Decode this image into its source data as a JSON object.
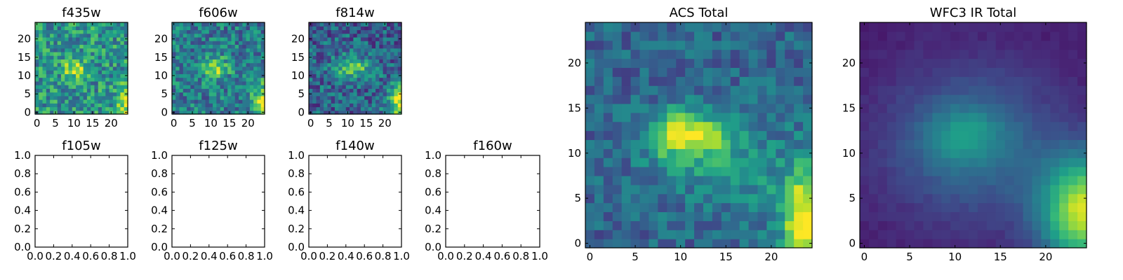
{
  "chart_data": [
    {
      "type": "heatmap",
      "title": "f435w",
      "xticks": [
        "0",
        "5",
        "10",
        "15",
        "20"
      ],
      "yticks": [
        "0",
        "5",
        "10",
        "15",
        "20"
      ],
      "xlim": [
        -0.5,
        24.5
      ],
      "ylim": [
        -0.5,
        24.5
      ],
      "colormap": "viridis",
      "grid": false,
      "image": "f435w"
    },
    {
      "type": "heatmap",
      "title": "f606w",
      "xticks": [
        "0",
        "5",
        "10",
        "15",
        "20"
      ],
      "yticks": [
        "0",
        "5",
        "10",
        "15",
        "20"
      ],
      "xlim": [
        -0.5,
        24.5
      ],
      "ylim": [
        -0.5,
        24.5
      ],
      "colormap": "viridis",
      "grid": false,
      "image": "f606w"
    },
    {
      "type": "heatmap",
      "title": "f814w",
      "xticks": [
        "0",
        "5",
        "10",
        "15",
        "20"
      ],
      "yticks": [
        "0",
        "5",
        "10",
        "15",
        "20"
      ],
      "xlim": [
        -0.5,
        24.5
      ],
      "ylim": [
        -0.5,
        24.5
      ],
      "colormap": "viridis",
      "grid": false,
      "image": "f814w"
    },
    {
      "type": "scatter",
      "title": "f105w",
      "xticks": [
        "0.0",
        "0.2",
        "0.4",
        "0.6",
        "0.8",
        "1.0"
      ],
      "yticks": [
        "0.0",
        "0.2",
        "0.4",
        "0.6",
        "0.8",
        "1.0"
      ],
      "xlim": [
        0,
        1
      ],
      "ylim": [
        0,
        1
      ],
      "grid": false,
      "empty": true
    },
    {
      "type": "scatter",
      "title": "f125w",
      "xticks": [
        "0.0",
        "0.2",
        "0.4",
        "0.6",
        "0.8",
        "1.0"
      ],
      "yticks": [
        "0.0",
        "0.2",
        "0.4",
        "0.6",
        "0.8",
        "1.0"
      ],
      "xlim": [
        0,
        1
      ],
      "ylim": [
        0,
        1
      ],
      "grid": false,
      "empty": true
    },
    {
      "type": "scatter",
      "title": "f140w",
      "xticks": [
        "0.0",
        "0.2",
        "0.4",
        "0.6",
        "0.8",
        "1.0"
      ],
      "yticks": [
        "0.0",
        "0.2",
        "0.4",
        "0.6",
        "0.8",
        "1.0"
      ],
      "xlim": [
        0,
        1
      ],
      "ylim": [
        0,
        1
      ],
      "grid": false,
      "empty": true
    },
    {
      "type": "scatter",
      "title": "f160w",
      "xticks": [
        "0.0",
        "0.2",
        "0.4",
        "0.6",
        "0.8",
        "1.0"
      ],
      "yticks": [
        "0.0",
        "0.2",
        "0.4",
        "0.6",
        "0.8",
        "1.0"
      ],
      "xlim": [
        0,
        1
      ],
      "ylim": [
        0,
        1
      ],
      "grid": false,
      "empty": true
    },
    {
      "type": "heatmap",
      "title": "ACS Total",
      "xticks": [
        "0",
        "5",
        "10",
        "15",
        "20"
      ],
      "yticks": [
        "0",
        "5",
        "10",
        "15",
        "20"
      ],
      "xlim": [
        -0.5,
        24.5
      ],
      "ylim": [
        -0.5,
        24.5
      ],
      "colormap": "viridis",
      "grid": false,
      "image": "acs"
    },
    {
      "type": "heatmap",
      "title": "WFC3 IR Total",
      "xticks": [
        "0",
        "5",
        "10",
        "15",
        "20"
      ],
      "yticks": [
        "0",
        "5",
        "10",
        "15",
        "20"
      ],
      "xlim": [
        -0.5,
        24.5
      ],
      "ylim": [
        -0.5,
        24.5
      ],
      "colormap": "viridis",
      "grid": false,
      "image": "ir"
    }
  ]
}
